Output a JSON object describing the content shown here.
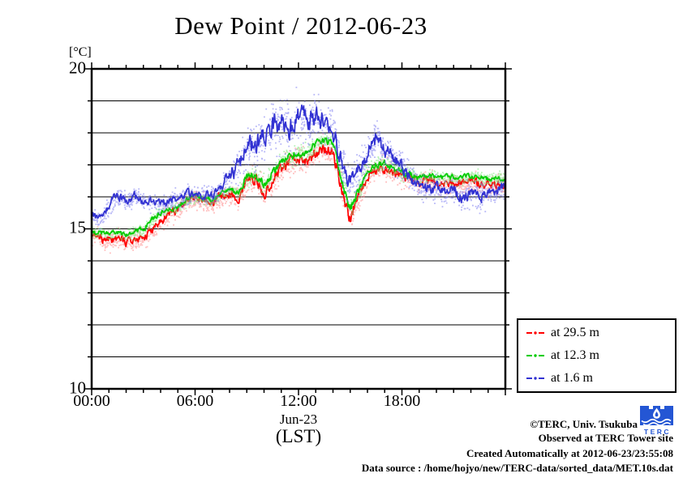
{
  "title": "Dew Point / 2012-06-23",
  "axes": {
    "y_unit_label": "[°C]",
    "y_tick_labels": [
      "20",
      "15",
      "10"
    ],
    "x_tick_labels": [
      "00:00",
      "06:00",
      "12:00",
      "18:00"
    ],
    "x_date_label": "Jun-23",
    "x_timezone_label": "(LST)"
  },
  "legend": {
    "items": [
      {
        "label": "at 29.5 m",
        "color": "#ff0000"
      },
      {
        "label": "at 12.3 m",
        "color": "#00cc00"
      },
      {
        "label": "at 1.6 m",
        "color": "#3232d2"
      }
    ]
  },
  "footer": {
    "copyright": "©TERC, Univ. Tsukuba",
    "observed": "Observed at TERC Tower site",
    "created": "Created Automatically at 2012-06-23/23:55:08",
    "data_source": "Data source : /home/hojyo/new/TERC-data/sorted_data/MET.10s.dat",
    "logo_text": "TERC",
    "logo_color": "#2456d4"
  },
  "chart_data": {
    "type": "line",
    "title": "Dew Point / 2012-06-23",
    "xlabel": "Jun-23 (LST)",
    "ylabel": "[°C]",
    "ylim": [
      10,
      20
    ],
    "xlim_hours": [
      0,
      24
    ],
    "x_major_ticks_hours": [
      0,
      6,
      12,
      18
    ],
    "y_labeled_ticks": [
      10,
      15,
      20
    ],
    "grid_interval_c": 1,
    "x_step_hours": 0.5,
    "series": [
      {
        "name": "at 29.5 m",
        "line_color": "#ff0000",
        "scatter_color": "#ff8a8a",
        "values": [
          14.8,
          14.7,
          14.62,
          14.72,
          14.6,
          14.7,
          14.72,
          14.95,
          15.25,
          15.45,
          15.6,
          15.88,
          15.95,
          15.9,
          15.8,
          16.0,
          16.1,
          15.95,
          16.45,
          16.55,
          16.1,
          16.55,
          16.95,
          17.05,
          17.2,
          17.1,
          17.4,
          17.5,
          17.45,
          16.2,
          15.35,
          16.0,
          16.6,
          16.85,
          16.9,
          16.75,
          16.6,
          16.55,
          16.45,
          16.5,
          16.45,
          16.4,
          16.45,
          16.4,
          16.45,
          16.4,
          16.35,
          16.4,
          16.3
        ],
        "spread": [
          0.22,
          0.22,
          0.22,
          0.22,
          0.22,
          0.22,
          0.22,
          0.22,
          0.22,
          0.22,
          0.22,
          0.22,
          0.22,
          0.22,
          0.22,
          0.22,
          0.22,
          0.22,
          0.28,
          0.28,
          0.28,
          0.28,
          0.28,
          0.28,
          0.28,
          0.28,
          0.28,
          0.28,
          0.28,
          0.35,
          0.35,
          0.35,
          0.25,
          0.25,
          0.25,
          0.25,
          0.25,
          0.22,
          0.22,
          0.22,
          0.22,
          0.22,
          0.22,
          0.22,
          0.22,
          0.22,
          0.22,
          0.22,
          0.22
        ]
      },
      {
        "name": "at 12.3 m",
        "line_color": "#00cc00",
        "scatter_color": "#7ce87c",
        "values": [
          14.95,
          14.88,
          14.85,
          14.9,
          14.8,
          14.9,
          15.0,
          15.3,
          15.5,
          15.6,
          15.7,
          15.95,
          16.0,
          15.95,
          15.9,
          16.1,
          16.25,
          16.15,
          16.6,
          16.7,
          16.35,
          16.75,
          17.15,
          17.25,
          17.4,
          17.35,
          17.65,
          17.8,
          17.7,
          16.55,
          15.6,
          16.25,
          16.85,
          17.0,
          17.05,
          16.9,
          16.75,
          16.7,
          16.6,
          16.65,
          16.6,
          16.6,
          16.65,
          16.6,
          16.65,
          16.6,
          16.55,
          16.6,
          16.55
        ],
        "spread": [
          0.13,
          0.13,
          0.13,
          0.13,
          0.13,
          0.13,
          0.13,
          0.13,
          0.13,
          0.13,
          0.13,
          0.13,
          0.13,
          0.13,
          0.13,
          0.13,
          0.13,
          0.13,
          0.2,
          0.2,
          0.2,
          0.2,
          0.2,
          0.2,
          0.2,
          0.2,
          0.2,
          0.2,
          0.2,
          0.25,
          0.25,
          0.25,
          0.18,
          0.18,
          0.18,
          0.18,
          0.18,
          0.14,
          0.14,
          0.14,
          0.14,
          0.14,
          0.14,
          0.14,
          0.14,
          0.14,
          0.14,
          0.14,
          0.14
        ]
      },
      {
        "name": "at 1.6 m",
        "line_color": "#3232d2",
        "scatter_color": "#7d7df0",
        "values": [
          15.4,
          15.3,
          15.75,
          16.05,
          15.85,
          16.05,
          15.8,
          15.85,
          15.75,
          15.85,
          15.95,
          16.1,
          16.1,
          16.05,
          16.05,
          16.35,
          16.7,
          16.95,
          17.45,
          17.7,
          17.8,
          18.2,
          18.35,
          18.15,
          18.55,
          18.25,
          18.6,
          18.35,
          18.1,
          17.0,
          16.4,
          16.8,
          17.3,
          17.9,
          17.4,
          17.25,
          17.0,
          16.6,
          16.3,
          16.25,
          16.3,
          16.1,
          16.2,
          15.95,
          16.15,
          16.0,
          16.1,
          16.2,
          16.35
        ],
        "spread": [
          0.2,
          0.2,
          0.22,
          0.22,
          0.2,
          0.2,
          0.2,
          0.2,
          0.2,
          0.2,
          0.2,
          0.2,
          0.2,
          0.2,
          0.22,
          0.28,
          0.38,
          0.45,
          0.5,
          0.55,
          0.55,
          0.6,
          0.6,
          0.6,
          0.6,
          0.6,
          0.55,
          0.55,
          0.5,
          0.45,
          0.4,
          0.45,
          0.45,
          0.45,
          0.4,
          0.35,
          0.32,
          0.3,
          0.28,
          0.28,
          0.3,
          0.3,
          0.3,
          0.3,
          0.28,
          0.28,
          0.28,
          0.25,
          0.25
        ]
      }
    ]
  }
}
